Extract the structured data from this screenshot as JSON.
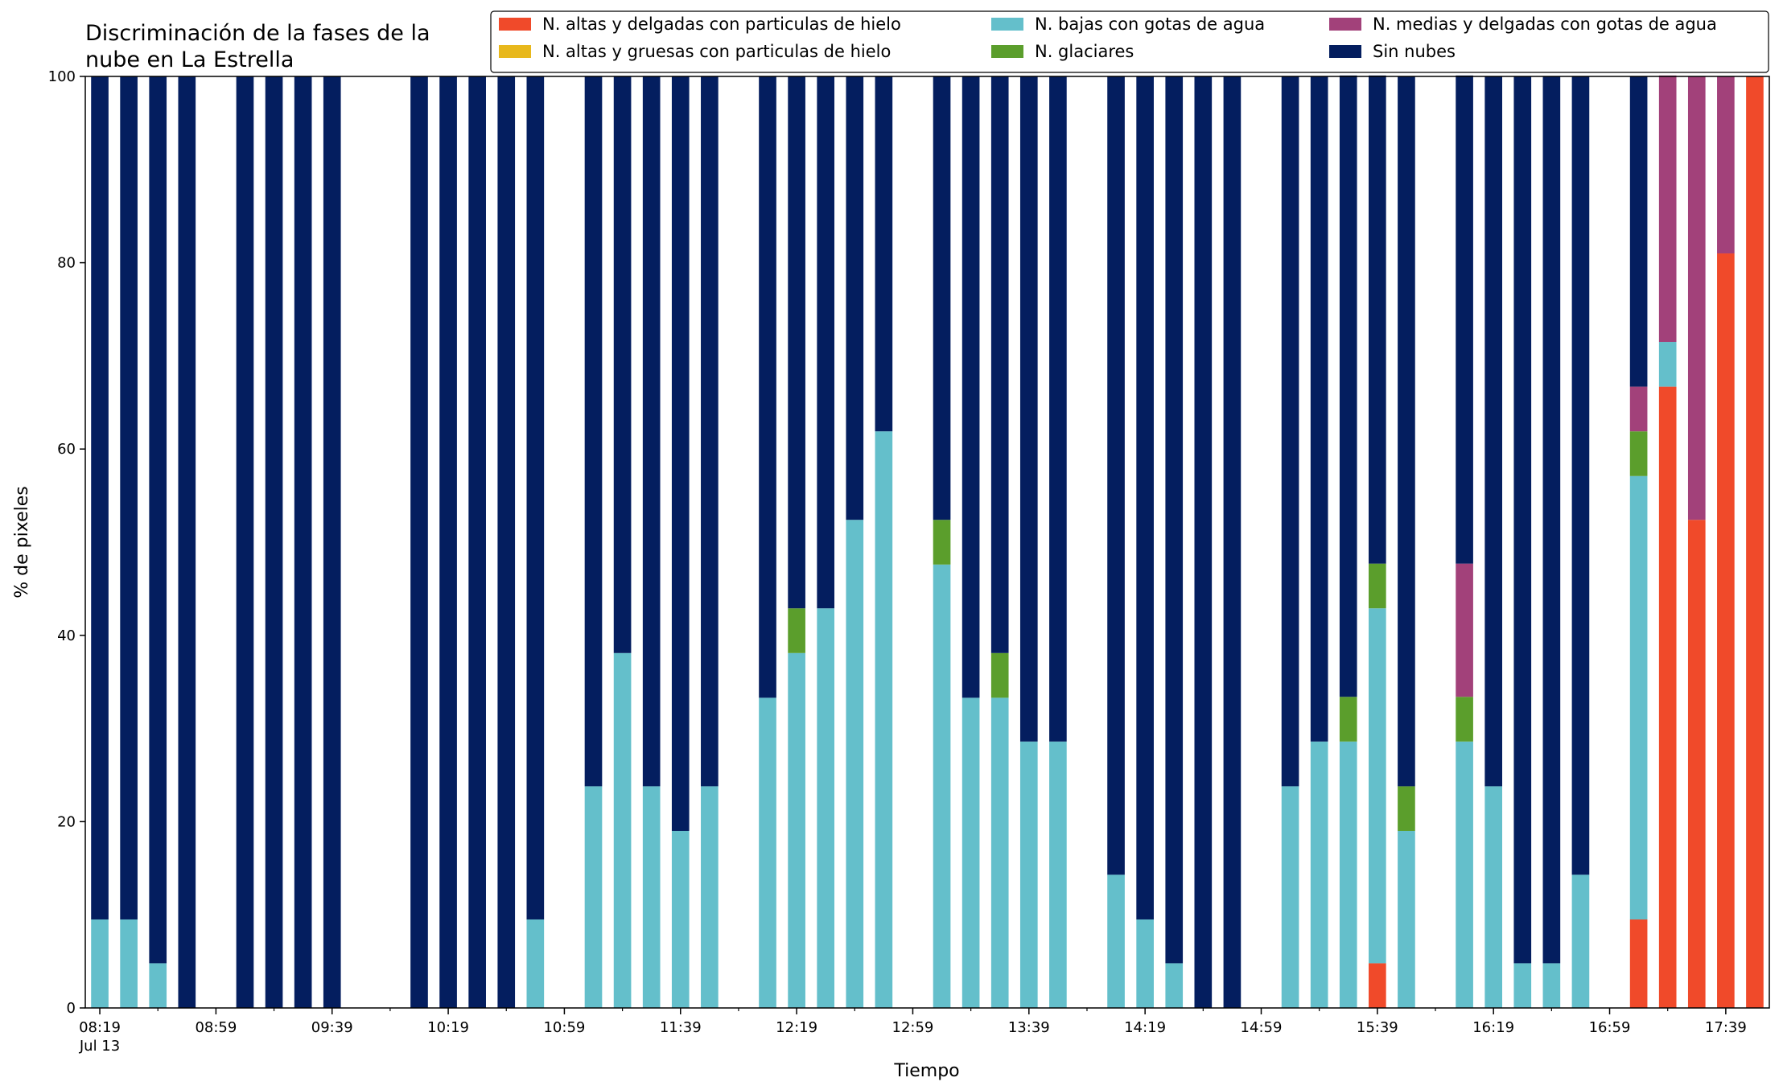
{
  "chart_data": {
    "type": "bar",
    "stacked": true,
    "title": [
      "Discriminación de la fases de la",
      "nube en La Estrella"
    ],
    "xlabel": "Tiempo",
    "ylabel": "% de pixeles",
    "ylim": [
      0,
      100
    ],
    "yticks": [
      0,
      20,
      40,
      60,
      80,
      100
    ],
    "xlim": [
      "08:14",
      "17:54"
    ],
    "xticks_major": [
      {
        "time": "08:19",
        "label": "08:19",
        "sublabel": "Jul 13"
      },
      {
        "time": "08:59",
        "label": "08:59"
      },
      {
        "time": "09:39",
        "label": "09:39"
      },
      {
        "time": "10:19",
        "label": "10:19"
      },
      {
        "time": "10:59",
        "label": "10:59"
      },
      {
        "time": "11:39",
        "label": "11:39"
      },
      {
        "time": "12:19",
        "label": "12:19"
      },
      {
        "time": "12:59",
        "label": "12:59"
      },
      {
        "time": "13:39",
        "label": "13:39"
      },
      {
        "time": "14:19",
        "label": "14:19"
      },
      {
        "time": "14:59",
        "label": "14:59"
      },
      {
        "time": "15:39",
        "label": "15:39"
      },
      {
        "time": "16:19",
        "label": "16:19"
      },
      {
        "time": "16:59",
        "label": "16:59"
      },
      {
        "time": "17:39",
        "label": "17:39"
      }
    ],
    "legend_position": "top-right",
    "legend_columns": 3,
    "series": [
      {
        "name": "N. altas y delgadas con particulas de hielo",
        "color": "#f04a2a"
      },
      {
        "name": "N. altas y gruesas con particulas de hielo",
        "color": "#e8b81c"
      },
      {
        "name": "N. bajas con gotas de agua",
        "color": "#64bfcb"
      },
      {
        "name": "N. glaciares",
        "color": "#5b9e2c"
      },
      {
        "name": "N. medias y delgadas con gotas de agua",
        "color": "#a2417a"
      },
      {
        "name": "Sin nubes",
        "color": "#041e5f"
      }
    ],
    "bars": [
      {
        "time": "08:19",
        "values": [
          0,
          0,
          9.5,
          0,
          0,
          90.5
        ]
      },
      {
        "time": "08:29",
        "values": [
          0,
          0,
          9.5,
          0,
          0,
          90.5
        ]
      },
      {
        "time": "08:39",
        "values": [
          0,
          0,
          4.8,
          0,
          0,
          95.2
        ]
      },
      {
        "time": "08:49",
        "values": [
          0,
          0,
          0,
          0,
          0,
          100
        ]
      },
      {
        "time": "09:09",
        "values": [
          0,
          0,
          0,
          0,
          0,
          100
        ]
      },
      {
        "time": "09:19",
        "values": [
          0,
          0,
          0,
          0,
          0,
          100
        ]
      },
      {
        "time": "09:29",
        "values": [
          0,
          0,
          0,
          0,
          0,
          100
        ]
      },
      {
        "time": "09:39",
        "values": [
          0,
          0,
          0,
          0,
          0,
          100
        ]
      },
      {
        "time": "10:09",
        "values": [
          0,
          0,
          0,
          0,
          0,
          100
        ]
      },
      {
        "time": "10:19",
        "values": [
          0,
          0,
          0,
          0,
          0,
          100
        ]
      },
      {
        "time": "10:29",
        "values": [
          0,
          0,
          0,
          0,
          0,
          100
        ]
      },
      {
        "time": "10:39",
        "values": [
          0,
          0,
          0,
          0,
          0,
          100
        ]
      },
      {
        "time": "10:49",
        "values": [
          0,
          0,
          9.5,
          0,
          0,
          90.5
        ]
      },
      {
        "time": "11:09",
        "values": [
          0,
          0,
          23.8,
          0,
          0,
          76.2
        ]
      },
      {
        "time": "11:19",
        "values": [
          0,
          0,
          38.1,
          0,
          0,
          61.9
        ]
      },
      {
        "time": "11:29",
        "values": [
          0,
          0,
          23.8,
          0,
          0,
          76.2
        ]
      },
      {
        "time": "11:39",
        "values": [
          0,
          0,
          19.0,
          0,
          0,
          81.0
        ]
      },
      {
        "time": "11:49",
        "values": [
          0,
          0,
          23.8,
          0,
          0,
          76.2
        ]
      },
      {
        "time": "12:09",
        "values": [
          0,
          0,
          33.3,
          0,
          0,
          66.7
        ]
      },
      {
        "time": "12:19",
        "values": [
          0,
          0,
          38.1,
          4.8,
          0,
          57.1
        ]
      },
      {
        "time": "12:29",
        "values": [
          0,
          0,
          42.9,
          0,
          0,
          57.1
        ]
      },
      {
        "time": "12:39",
        "values": [
          0,
          0,
          52.4,
          0,
          0,
          47.6
        ]
      },
      {
        "time": "12:49",
        "values": [
          0,
          0,
          61.9,
          0,
          0,
          38.1
        ]
      },
      {
        "time": "13:09",
        "values": [
          0,
          0,
          47.6,
          4.8,
          0,
          47.6
        ]
      },
      {
        "time": "13:19",
        "values": [
          0,
          0,
          33.3,
          0,
          0,
          66.7
        ]
      },
      {
        "time": "13:29",
        "values": [
          0,
          0,
          33.3,
          4.8,
          0,
          61.9
        ]
      },
      {
        "time": "13:39",
        "values": [
          0,
          0,
          28.6,
          0,
          0,
          71.4
        ]
      },
      {
        "time": "13:49",
        "values": [
          0,
          0,
          28.6,
          0,
          0,
          71.4
        ]
      },
      {
        "time": "14:09",
        "values": [
          0,
          0,
          14.3,
          0,
          0,
          85.7
        ]
      },
      {
        "time": "14:19",
        "values": [
          0,
          0,
          9.5,
          0,
          0,
          90.5
        ]
      },
      {
        "time": "14:29",
        "values": [
          0,
          0,
          4.8,
          0,
          0,
          95.2
        ]
      },
      {
        "time": "14:39",
        "values": [
          0,
          0,
          0,
          0,
          0,
          100
        ]
      },
      {
        "time": "14:49",
        "values": [
          0,
          0,
          0,
          0,
          0,
          100
        ]
      },
      {
        "time": "15:09",
        "values": [
          0,
          0,
          23.8,
          0,
          0,
          76.2
        ]
      },
      {
        "time": "15:19",
        "values": [
          0,
          0,
          28.6,
          0,
          0,
          71.4
        ]
      },
      {
        "time": "15:29",
        "values": [
          0,
          0,
          28.6,
          4.8,
          0,
          66.7
        ]
      },
      {
        "time": "15:39",
        "values": [
          4.8,
          0,
          38.1,
          4.8,
          0,
          52.4
        ]
      },
      {
        "time": "15:49",
        "values": [
          0,
          0,
          19.0,
          4.8,
          0,
          76.2
        ]
      },
      {
        "time": "16:09",
        "values": [
          0,
          0,
          28.6,
          4.8,
          14.3,
          52.4
        ]
      },
      {
        "time": "16:19",
        "values": [
          0,
          0,
          23.8,
          0,
          0,
          76.2
        ]
      },
      {
        "time": "16:29",
        "values": [
          0,
          0,
          4.8,
          0,
          0,
          95.2
        ]
      },
      {
        "time": "16:39",
        "values": [
          0,
          0,
          4.8,
          0,
          0,
          95.2
        ]
      },
      {
        "time": "16:49",
        "values": [
          0,
          0,
          14.3,
          0,
          0,
          85.7
        ]
      },
      {
        "time": "17:09",
        "values": [
          9.5,
          0,
          47.6,
          4.8,
          4.8,
          33.3
        ]
      },
      {
        "time": "17:19",
        "values": [
          66.7,
          0,
          4.8,
          0,
          28.6,
          0
        ]
      },
      {
        "time": "17:29",
        "values": [
          52.4,
          0,
          0,
          0,
          47.6,
          0
        ]
      },
      {
        "time": "17:39",
        "values": [
          81.0,
          0,
          0,
          0,
          19.0,
          0
        ]
      },
      {
        "time": "17:49",
        "values": [
          100,
          0,
          0,
          0,
          0,
          0
        ]
      }
    ]
  }
}
